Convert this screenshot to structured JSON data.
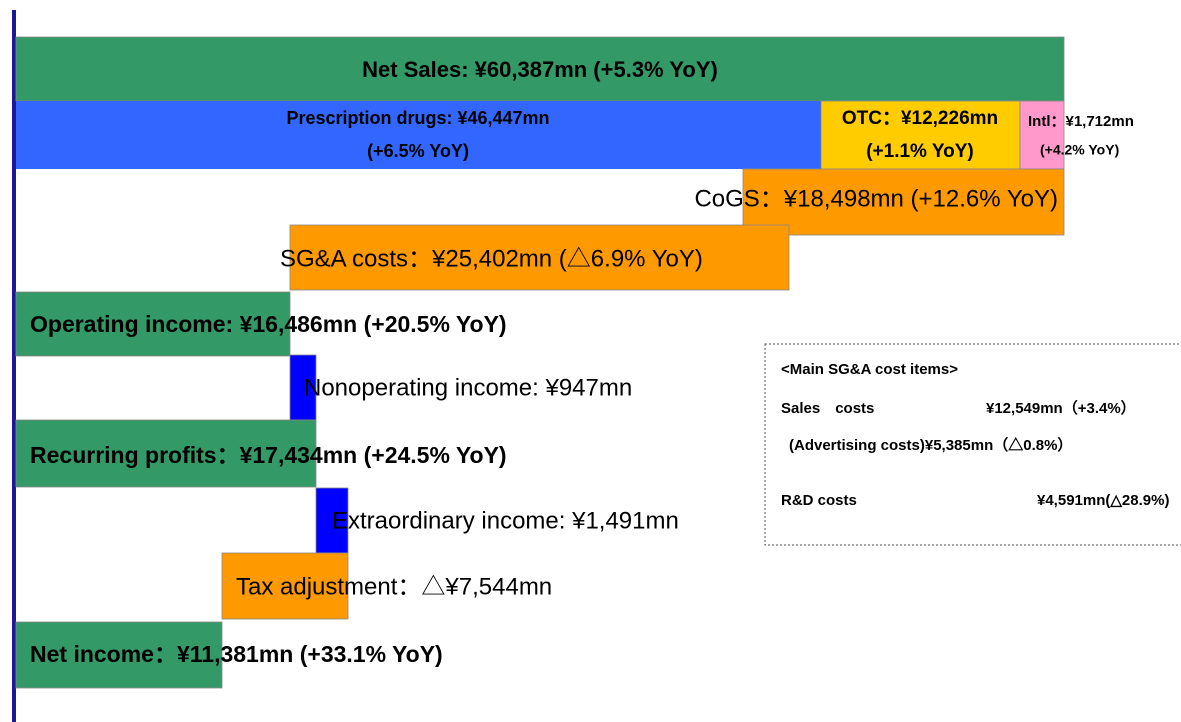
{
  "rows": {
    "net_sales": "Net Sales: ¥60,387mn (+5.3% YoY)",
    "prescription": [
      "Prescription drugs: ¥46,447mn",
      "(+6.5% YoY)"
    ],
    "otc": [
      "OTC：¥12,226mn",
      "(+1.1% YoY)"
    ],
    "intl": [
      "Intl：¥1,712mn",
      "(+4.2% YoY)"
    ],
    "cogs": "CoGS：¥18,498mn (+12.6% YoY)",
    "sga": "SG&A costs：¥25,402mn (△6.9% YoY)",
    "operating_income": "Operating income: ¥16,486mn (+20.5% YoY)",
    "nonoperating_income": "Nonoperating income: ¥947mn",
    "recurring_profits": "Recurring profits：¥17,434mn (+24.5% YoY)",
    "extraordinary_income": "Extraordinary income: ¥1,491mn",
    "tax_adjustment": "Tax adjustment：△¥7,544mn",
    "net_income": "Net income：¥11,381mn (+33.1% YoY)"
  },
  "sga_box": {
    "title": "<Main SG&A cost items>",
    "sales": [
      "Sales　costs",
      "¥12,549mn（+3.4%）"
    ],
    "advertising": "(Advertising costs)¥5,385mn（△0.8%）",
    "rnd": [
      "R&D costs",
      "¥4,591mn(△28.9%)"
    ]
  }
}
